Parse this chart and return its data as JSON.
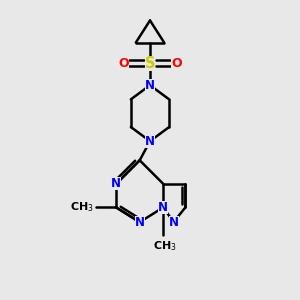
{
  "bg_color": "#e8e8e8",
  "bond_color": "#000000",
  "N_color": "#0000ff",
  "S_color": "#cccc00",
  "O_color": "#ff0000",
  "line_width": 1.8,
  "font_size": 8.5,
  "fig_w": 3.0,
  "fig_h": 3.0,
  "dpi": 100,
  "xlim": [
    0,
    10
  ],
  "ylim": [
    0,
    10
  ]
}
